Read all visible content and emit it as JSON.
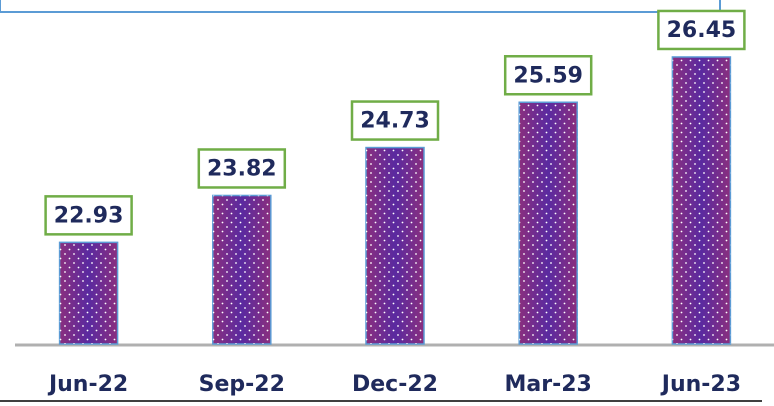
{
  "chart_data": {
    "type": "bar",
    "categories": [
      "Jun-22",
      "Sep-22",
      "Dec-22",
      "Mar-23",
      "Jun-23"
    ],
    "values": [
      22.93,
      23.82,
      24.73,
      25.59,
      26.45
    ],
    "color": "#6a2c91",
    "ylim": [
      21,
      27
    ]
  }
}
